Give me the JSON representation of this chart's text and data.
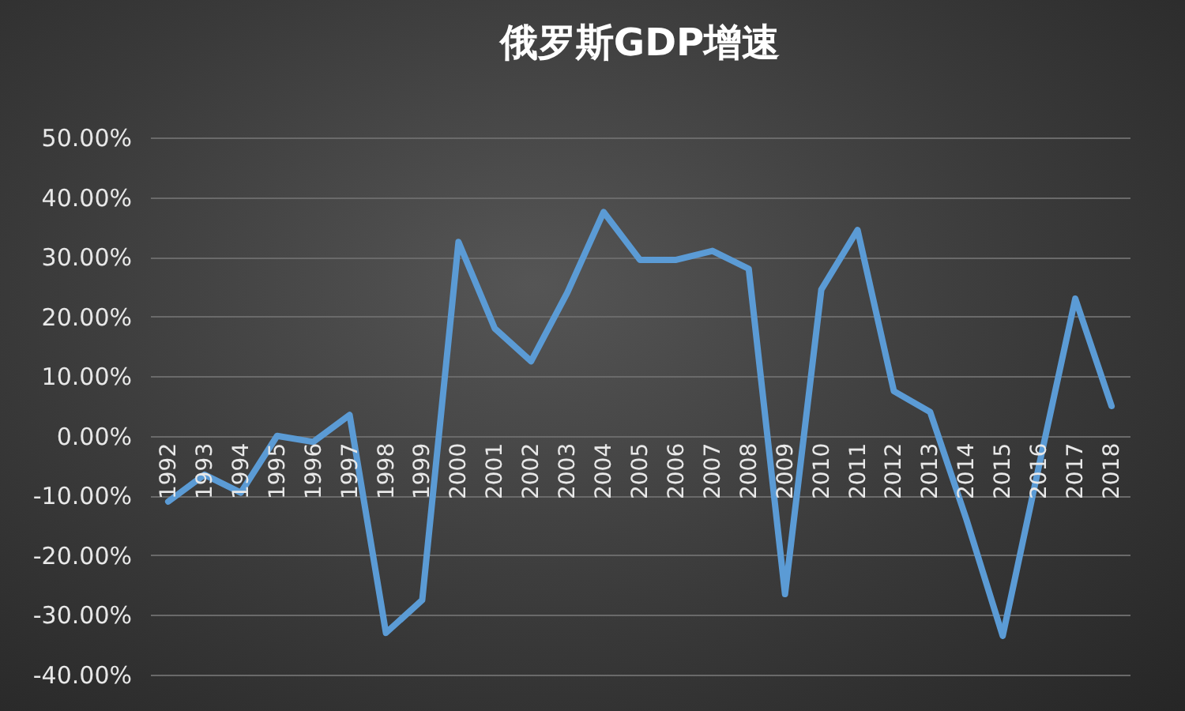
{
  "chart_data": {
    "type": "line",
    "title": "俄罗斯GDP增速",
    "categories": [
      "1992",
      "1993",
      "1994",
      "1995",
      "1996",
      "1997",
      "1998",
      "1999",
      "2000",
      "2001",
      "2002",
      "2003",
      "2004",
      "2005",
      "2006",
      "2007",
      "2008",
      "2009",
      "2010",
      "2011",
      "2012",
      "2013",
      "2014",
      "2015",
      "2016",
      "2017",
      "2018"
    ],
    "series": [
      {
        "color": "#5b9bd5",
        "values": [
          -11,
          -6.5,
          -9.5,
          0,
          -1,
          3.5,
          -33,
          -27.5,
          32.5,
          18,
          12.5,
          24,
          37.5,
          29.5,
          29.5,
          31,
          28,
          -26.5,
          24.5,
          34.5,
          7.5,
          4,
          -14,
          -33.5,
          -5,
          23,
          5
        ]
      }
    ],
    "ylim": [
      -40,
      50
    ],
    "yticks": [
      {
        "value": -40,
        "label": "-40.00%"
      },
      {
        "value": -30,
        "label": "-30.00%"
      },
      {
        "value": -20,
        "label": "-20.00%"
      },
      {
        "value": -10,
        "label": "-10.00%"
      },
      {
        "value": 0,
        "label": "0.00%"
      },
      {
        "value": 10,
        "label": "10.00%"
      },
      {
        "value": 20,
        "label": "20.00%"
      },
      {
        "value": 30,
        "label": "30.00%"
      },
      {
        "value": 40,
        "label": "40.00%"
      },
      {
        "value": 50,
        "label": "50.00%"
      }
    ],
    "grid": "y",
    "legend": false,
    "marker": "none",
    "line_style": "solid"
  }
}
